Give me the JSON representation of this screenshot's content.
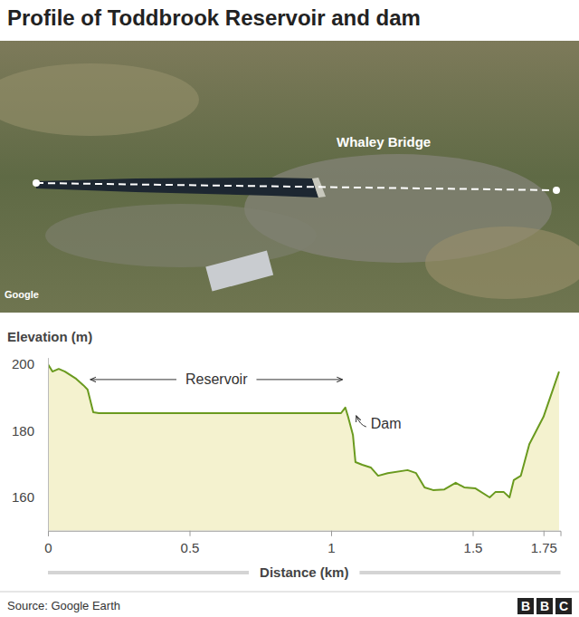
{
  "chart_data": {
    "type": "area",
    "title": "Profile of Toddbrook Reservoir and dam",
    "y_label": "Elevation (m)",
    "x_label": "Distance (km)",
    "x": [
      0,
      0.016,
      0.038,
      0.06,
      0.1,
      0.125,
      0.14,
      0.16,
      0.18,
      1.035,
      1.05,
      1.06,
      1.077,
      1.086,
      1.11,
      1.14,
      1.166,
      1.2,
      1.27,
      1.3,
      1.33,
      1.36,
      1.4,
      1.44,
      1.47,
      1.51,
      1.56,
      1.58,
      1.61,
      1.63,
      1.645,
      1.67,
      1.7,
      1.75,
      1.805
    ],
    "values": [
      200,
      197.8,
      198.6,
      197.8,
      195.6,
      193.7,
      192.4,
      185.6,
      185.3,
      185.3,
      187,
      184.2,
      178.8,
      170.6,
      169.8,
      169,
      166.5,
      167.3,
      168.2,
      167.3,
      163,
      162.2,
      162.4,
      164.4,
      163,
      162.7,
      160,
      161.6,
      161.6,
      160,
      165.2,
      166.5,
      176,
      184.2,
      197.8
    ],
    "color": "#6a9a1f",
    "xlim": [
      0,
      1.81
    ],
    "xticks": [
      0,
      0.5,
      1,
      1.5,
      1.75
    ],
    "ylim": [
      150,
      202
    ],
    "yticks": [
      160,
      180,
      200
    ],
    "grid": false,
    "annotations": [
      {
        "text": "Reservoir",
        "x": [
          0.15,
          1.04
        ],
        "y": 195.4
      },
      {
        "text": "Dam",
        "x": 1.14,
        "y": 182.3
      }
    ],
    "map_labels": [
      "Whaley Bridge"
    ],
    "map_credit": "Google",
    "source": "Source: Google Earth",
    "logo": "BBC"
  }
}
